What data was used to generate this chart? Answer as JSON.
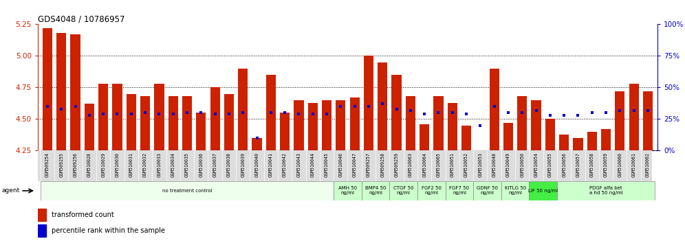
{
  "title": "GDS4048 / 10786957",
  "samples": [
    "GSM509254",
    "GSM509255",
    "GSM509256",
    "GSM510028",
    "GSM510029",
    "GSM510030",
    "GSM510031",
    "GSM510032",
    "GSM510033",
    "GSM510034",
    "GSM510035",
    "GSM510036",
    "GSM510037",
    "GSM510038",
    "GSM510039",
    "GSM510040",
    "GSM510041",
    "GSM510042",
    "GSM510043",
    "GSM510044",
    "GSM510045",
    "GSM510046",
    "GSM510047",
    "GSM509257",
    "GSM509258",
    "GSM509259",
    "GSM510063",
    "GSM510064",
    "GSM510065",
    "GSM510051",
    "GSM510052",
    "GSM510053",
    "GSM510048",
    "GSM510049",
    "GSM510050",
    "GSM510054",
    "GSM510055",
    "GSM510056",
    "GSM510057",
    "GSM510058",
    "GSM510059",
    "GSM510060",
    "GSM510061",
    "GSM510062"
  ],
  "red_values": [
    5.22,
    5.18,
    5.17,
    4.62,
    4.78,
    4.78,
    4.7,
    4.68,
    4.78,
    4.68,
    4.68,
    4.55,
    4.75,
    4.7,
    4.9,
    4.35,
    4.85,
    4.55,
    4.65,
    4.63,
    4.65,
    4.65,
    4.67,
    5.0,
    4.95,
    4.85,
    4.68,
    4.46,
    4.68,
    4.63,
    4.45,
    4.2,
    4.9,
    4.47,
    4.68,
    4.65,
    4.5,
    4.38,
    4.35,
    4.4,
    4.42,
    4.72,
    4.78,
    4.72
  ],
  "blue_values_pct": [
    35,
    33,
    35,
    28,
    29,
    29,
    29,
    30,
    29,
    29,
    30,
    30,
    29,
    29,
    30,
    10,
    30,
    30,
    29,
    29,
    29,
    35,
    35,
    35,
    37,
    33,
    32,
    29,
    30,
    30,
    29,
    20,
    35,
    30,
    30,
    32,
    28,
    28,
    28,
    30,
    30,
    32,
    32,
    32
  ],
  "ylim_left": [
    4.25,
    5.25
  ],
  "ylim_right": [
    0,
    100
  ],
  "yticks_left": [
    4.25,
    4.5,
    4.75,
    5.0,
    5.25
  ],
  "yticks_right": [
    0,
    25,
    50,
    75,
    100
  ],
  "bar_color": "#cc2200",
  "dot_color": "#0000cc",
  "groups": [
    {
      "label": "no treatment control",
      "start": 0,
      "end": 21,
      "color": "#eeffee"
    },
    {
      "label": "AMH 50\nng/ml",
      "start": 21,
      "end": 23,
      "color": "#ccffcc"
    },
    {
      "label": "BMP4 50\nng/ml",
      "start": 23,
      "end": 25,
      "color": "#ccffcc"
    },
    {
      "label": "CTGF 50\nng/ml",
      "start": 25,
      "end": 27,
      "color": "#ccffcc"
    },
    {
      "label": "FGF2 50\nng/ml",
      "start": 27,
      "end": 29,
      "color": "#ccffcc"
    },
    {
      "label": "FGF7 50\nng/ml",
      "start": 29,
      "end": 31,
      "color": "#ccffcc"
    },
    {
      "label": "GDNF 50\nng/ml",
      "start": 31,
      "end": 33,
      "color": "#ccffcc"
    },
    {
      "label": "KITLG 50\nng/ml",
      "start": 33,
      "end": 35,
      "color": "#ccffcc"
    },
    {
      "label": "LIF 50 ng/ml",
      "start": 35,
      "end": 37,
      "color": "#44ee44"
    },
    {
      "label": "PDGF alfa bet\na hd 50 ng/ml",
      "start": 37,
      "end": 44,
      "color": "#ccffcc"
    }
  ],
  "bar_width": 0.7,
  "tick_color_left": "#cc2200",
  "tick_color_right": "#0000cc"
}
